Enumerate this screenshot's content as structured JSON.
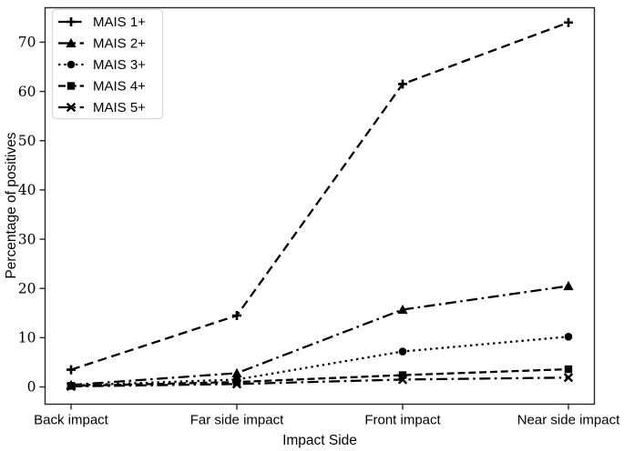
{
  "chart_data": {
    "type": "line",
    "title": "",
    "xlabel": "Impact Side",
    "ylabel": "Percentage of positives",
    "categories": [
      "Back impact",
      "Far side impact",
      "Front impact",
      "Near side impact"
    ],
    "yticks": [
      0,
      10,
      20,
      30,
      40,
      50,
      60,
      70
    ],
    "ylim": [
      -3.5,
      77
    ],
    "grid": false,
    "legend_position": "upper left",
    "series": [
      {
        "name": "MAIS 1+",
        "values": [
          3.5,
          14.5,
          61.5,
          74.0
        ],
        "linestyle": "dashed-long",
        "marker": "plus"
      },
      {
        "name": "MAIS 2+",
        "values": [
          0.4,
          2.8,
          15.7,
          20.5
        ],
        "linestyle": "dashdot",
        "marker": "triangle-up"
      },
      {
        "name": "MAIS 3+",
        "values": [
          0.3,
          1.5,
          7.2,
          10.2
        ],
        "linestyle": "dotted",
        "marker": "circle"
      },
      {
        "name": "MAIS 4+",
        "values": [
          0.2,
          1.0,
          2.4,
          3.6
        ],
        "linestyle": "dashed",
        "marker": "square"
      },
      {
        "name": "MAIS 5+",
        "values": [
          0.1,
          0.6,
          1.5,
          1.9
        ],
        "linestyle": "dashdot",
        "marker": "x"
      }
    ],
    "colors": {
      "line": "#000000",
      "axis": "#262626",
      "legend_border": "#d9d9d9",
      "legend_background": "#ffffff"
    }
  }
}
